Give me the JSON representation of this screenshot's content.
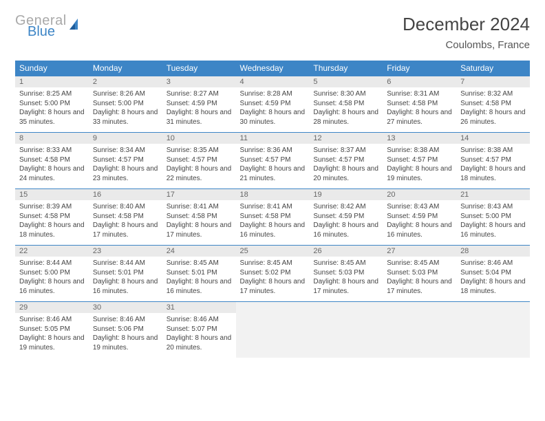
{
  "logo": {
    "text1": "General",
    "text2": "Blue",
    "color_gray": "#a9a9a9",
    "color_blue": "#3d85c6"
  },
  "title": "December 2024",
  "location": "Coulombs, France",
  "colors": {
    "header_bg": "#3d85c6",
    "header_text": "#ffffff",
    "daynum_bg": "#eaeaea",
    "daynum_text": "#666666",
    "cell_text": "#444444",
    "border": "#3d85c6",
    "empty_bg": "#f2f2f2"
  },
  "day_headers": [
    "Sunday",
    "Monday",
    "Tuesday",
    "Wednesday",
    "Thursday",
    "Friday",
    "Saturday"
  ],
  "weeks": [
    [
      {
        "n": "1",
        "sr": "8:25 AM",
        "ss": "5:00 PM",
        "dl": "8 hours and 35 minutes."
      },
      {
        "n": "2",
        "sr": "8:26 AM",
        "ss": "5:00 PM",
        "dl": "8 hours and 33 minutes."
      },
      {
        "n": "3",
        "sr": "8:27 AM",
        "ss": "4:59 PM",
        "dl": "8 hours and 31 minutes."
      },
      {
        "n": "4",
        "sr": "8:28 AM",
        "ss": "4:59 PM",
        "dl": "8 hours and 30 minutes."
      },
      {
        "n": "5",
        "sr": "8:30 AM",
        "ss": "4:58 PM",
        "dl": "8 hours and 28 minutes."
      },
      {
        "n": "6",
        "sr": "8:31 AM",
        "ss": "4:58 PM",
        "dl": "8 hours and 27 minutes."
      },
      {
        "n": "7",
        "sr": "8:32 AM",
        "ss": "4:58 PM",
        "dl": "8 hours and 26 minutes."
      }
    ],
    [
      {
        "n": "8",
        "sr": "8:33 AM",
        "ss": "4:58 PM",
        "dl": "8 hours and 24 minutes."
      },
      {
        "n": "9",
        "sr": "8:34 AM",
        "ss": "4:57 PM",
        "dl": "8 hours and 23 minutes."
      },
      {
        "n": "10",
        "sr": "8:35 AM",
        "ss": "4:57 PM",
        "dl": "8 hours and 22 minutes."
      },
      {
        "n": "11",
        "sr": "8:36 AM",
        "ss": "4:57 PM",
        "dl": "8 hours and 21 minutes."
      },
      {
        "n": "12",
        "sr": "8:37 AM",
        "ss": "4:57 PM",
        "dl": "8 hours and 20 minutes."
      },
      {
        "n": "13",
        "sr": "8:38 AM",
        "ss": "4:57 PM",
        "dl": "8 hours and 19 minutes."
      },
      {
        "n": "14",
        "sr": "8:38 AM",
        "ss": "4:57 PM",
        "dl": "8 hours and 18 minutes."
      }
    ],
    [
      {
        "n": "15",
        "sr": "8:39 AM",
        "ss": "4:58 PM",
        "dl": "8 hours and 18 minutes."
      },
      {
        "n": "16",
        "sr": "8:40 AM",
        "ss": "4:58 PM",
        "dl": "8 hours and 17 minutes."
      },
      {
        "n": "17",
        "sr": "8:41 AM",
        "ss": "4:58 PM",
        "dl": "8 hours and 17 minutes."
      },
      {
        "n": "18",
        "sr": "8:41 AM",
        "ss": "4:58 PM",
        "dl": "8 hours and 16 minutes."
      },
      {
        "n": "19",
        "sr": "8:42 AM",
        "ss": "4:59 PM",
        "dl": "8 hours and 16 minutes."
      },
      {
        "n": "20",
        "sr": "8:43 AM",
        "ss": "4:59 PM",
        "dl": "8 hours and 16 minutes."
      },
      {
        "n": "21",
        "sr": "8:43 AM",
        "ss": "5:00 PM",
        "dl": "8 hours and 16 minutes."
      }
    ],
    [
      {
        "n": "22",
        "sr": "8:44 AM",
        "ss": "5:00 PM",
        "dl": "8 hours and 16 minutes."
      },
      {
        "n": "23",
        "sr": "8:44 AM",
        "ss": "5:01 PM",
        "dl": "8 hours and 16 minutes."
      },
      {
        "n": "24",
        "sr": "8:45 AM",
        "ss": "5:01 PM",
        "dl": "8 hours and 16 minutes."
      },
      {
        "n": "25",
        "sr": "8:45 AM",
        "ss": "5:02 PM",
        "dl": "8 hours and 17 minutes."
      },
      {
        "n": "26",
        "sr": "8:45 AM",
        "ss": "5:03 PM",
        "dl": "8 hours and 17 minutes."
      },
      {
        "n": "27",
        "sr": "8:45 AM",
        "ss": "5:03 PM",
        "dl": "8 hours and 17 minutes."
      },
      {
        "n": "28",
        "sr": "8:46 AM",
        "ss": "5:04 PM",
        "dl": "8 hours and 18 minutes."
      }
    ],
    [
      {
        "n": "29",
        "sr": "8:46 AM",
        "ss": "5:05 PM",
        "dl": "8 hours and 19 minutes."
      },
      {
        "n": "30",
        "sr": "8:46 AM",
        "ss": "5:06 PM",
        "dl": "8 hours and 19 minutes."
      },
      {
        "n": "31",
        "sr": "8:46 AM",
        "ss": "5:07 PM",
        "dl": "8 hours and 20 minutes."
      },
      null,
      null,
      null,
      null
    ]
  ],
  "labels": {
    "sunrise": "Sunrise:",
    "sunset": "Sunset:",
    "daylight": "Daylight:"
  }
}
